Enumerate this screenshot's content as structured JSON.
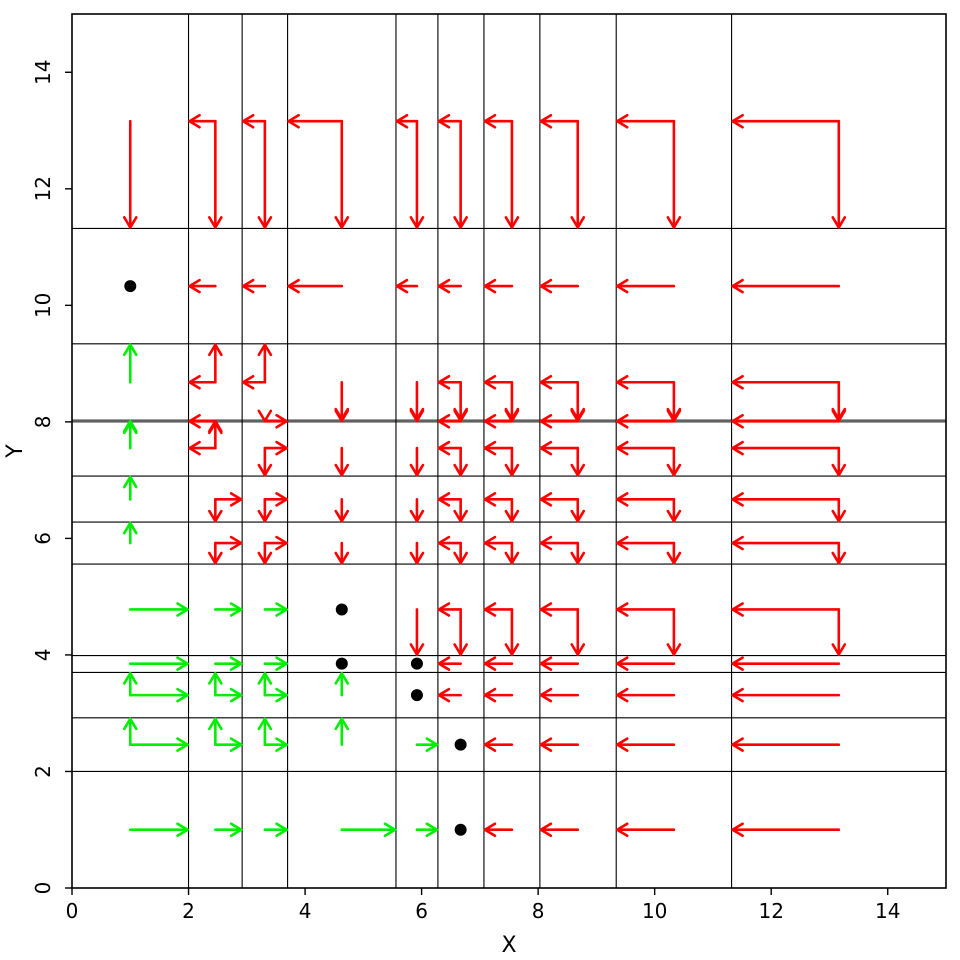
{
  "chart_data": {
    "type": "vector-field",
    "xlabel": "X",
    "ylabel": "Y",
    "xlim": [
      0,
      15
    ],
    "ylim": [
      0,
      15
    ],
    "xticks": [
      "0",
      "2",
      "4",
      "6",
      "8",
      "10",
      "12",
      "14"
    ],
    "yticks": [
      "0",
      "2",
      "4",
      "6",
      "8",
      "10",
      "12",
      "14"
    ],
    "grid_x": [
      2.0,
      2.92,
      3.7,
      5.56,
      6.28,
      7.07,
      8.03,
      9.34,
      11.32
    ],
    "grid_y": [
      2.0,
      2.92,
      3.7,
      3.99,
      5.56,
      6.28,
      7.07,
      8.0,
      8.03,
      9.34,
      11.32
    ],
    "centers_x": [
      1.0,
      2.46,
      3.31,
      4.63,
      5.92,
      6.67,
      7.55,
      8.68,
      10.33,
      13.16
    ],
    "centers_y": [
      1.0,
      2.46,
      3.31,
      3.85,
      4.78,
      5.92,
      6.67,
      7.55,
      8.01,
      8.68,
      10.33,
      13.16
    ],
    "targets": [
      [
        1.0,
        10.33
      ],
      [
        4.63,
        4.78
      ],
      [
        4.63,
        3.85
      ],
      [
        5.92,
        3.85
      ],
      [
        5.92,
        3.31
      ],
      [
        6.67,
        2.46
      ],
      [
        6.67,
        1.0
      ]
    ],
    "series": [
      {
        "color": "#00ee00",
        "direction": "toward-target"
      },
      {
        "color": "#ff0000",
        "direction": "toward-target"
      }
    ],
    "marker_color": "#000000"
  }
}
